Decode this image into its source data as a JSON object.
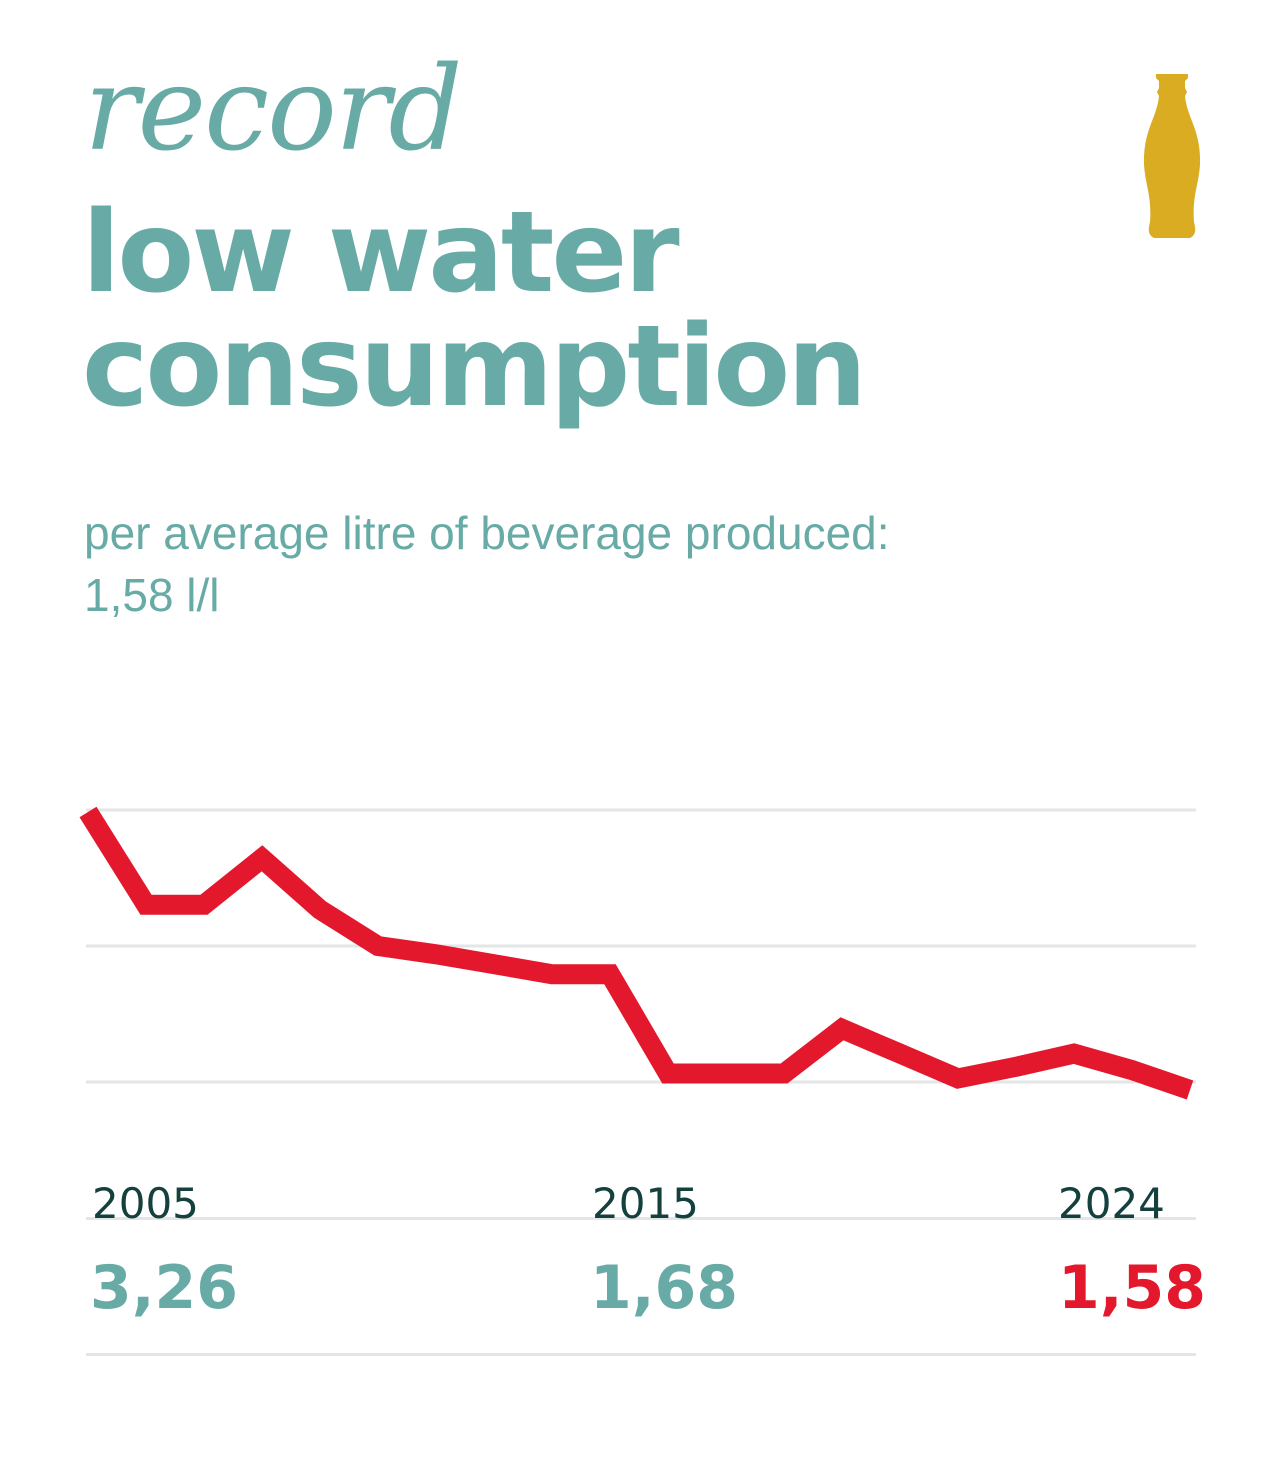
{
  "header": {
    "title_line1": "record",
    "title_line2": "low water",
    "title_line3": "consumption",
    "subtitle_line1": "per average litre of beverage produced:",
    "subtitle_line2": "1,58 l/l",
    "bottle_icon": "bottle-icon"
  },
  "colors": {
    "teal": "#68aba6",
    "red": "#e3182d",
    "gold": "#d9ac22",
    "dark_text": "#14403d",
    "gridline": "#e3e5e6"
  },
  "chart_data": {
    "type": "line",
    "title": "",
    "xlabel": "",
    "ylabel": "",
    "x": [
      2005,
      2006,
      2007,
      2008,
      2009,
      2010,
      2011,
      2012,
      2013,
      2014,
      2015,
      2016,
      2017,
      2018,
      2019,
      2020,
      2021,
      2022,
      2023,
      2024
    ],
    "series": [
      {
        "values": [
          3.26,
          2.7,
          2.7,
          2.98,
          2.67,
          2.45,
          2.4,
          2.34,
          2.28,
          2.28,
          1.68,
          1.68,
          1.68,
          1.95,
          1.8,
          1.65,
          1.72,
          1.8,
          1.7,
          1.58
        ]
      }
    ],
    "ylim": [
      1.58,
      3.26
    ],
    "grid": true,
    "highlights": [
      {
        "year": "2005",
        "value": "3,26"
      },
      {
        "year": "2015",
        "value": "1,68"
      },
      {
        "year": "2024",
        "value": "1,58"
      }
    ]
  }
}
